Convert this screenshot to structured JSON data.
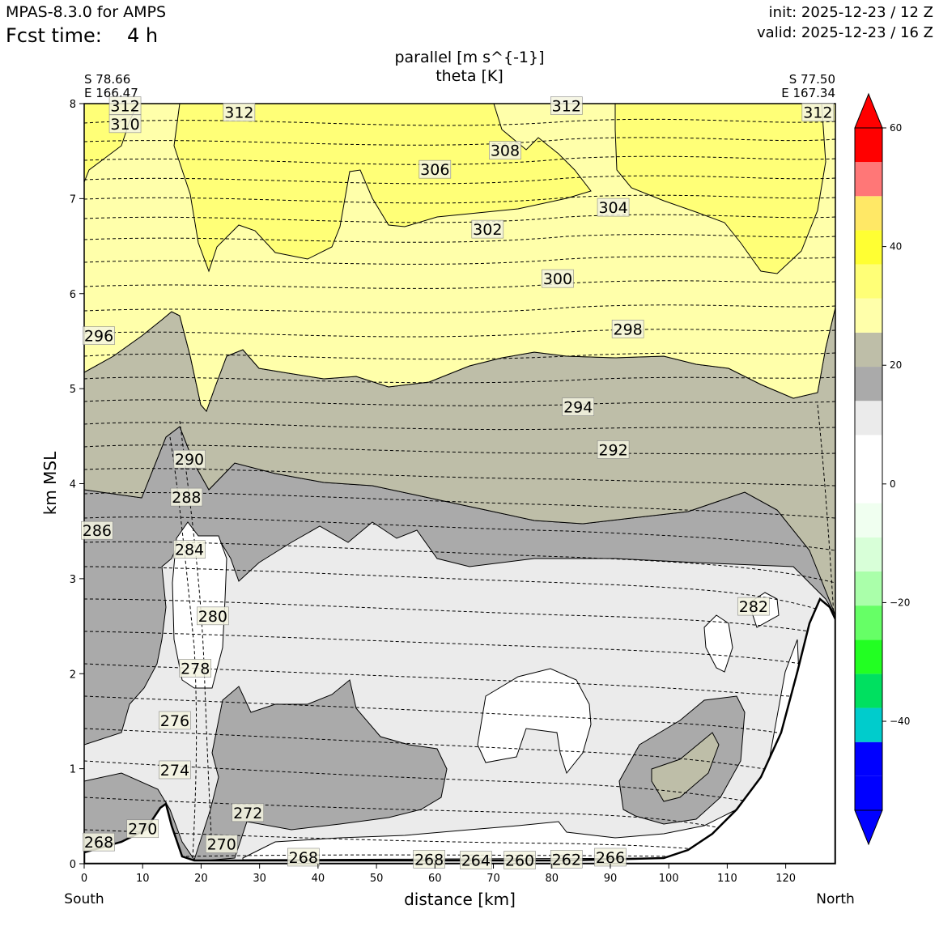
{
  "header": {
    "model": "MPAS-8.3.0 for AMPS",
    "fcst_label": "Fcst time:",
    "fcst_value": "4 h",
    "init": "init: 2025-12-23 / 12 Z",
    "valid": "valid: 2025-12-23 / 16 Z"
  },
  "chart_data": {
    "type": "cross-section",
    "title": "parallel [m s^{-1}]",
    "subtitle": "theta [K]",
    "start_point": [
      "S 78.66",
      "E 166.47"
    ],
    "end_point": [
      "S 77.50",
      "E 167.34"
    ],
    "xlabel": "distance [km]",
    "ylabel": "km MSL",
    "x_end_labels": [
      "South",
      "North"
    ],
    "xlim": [
      0,
      128.5
    ],
    "ylim": [
      0,
      8
    ],
    "x_ticks": [
      0,
      10,
      20,
      30,
      40,
      50,
      60,
      70,
      80,
      90,
      100,
      110,
      120
    ],
    "y_ticks": [
      0,
      1,
      2,
      3,
      4,
      5,
      6,
      7,
      8
    ],
    "colorbar": {
      "ticks": [
        -40,
        -20,
        0,
        20,
        40,
        60
      ],
      "tick_labels": [
        "−40",
        "−20",
        "0",
        "20",
        "40",
        "60"
      ],
      "levels": [
        -55,
        -50,
        -45,
        -40,
        -35,
        -30,
        -25,
        -20,
        -15,
        -10,
        -5,
        0,
        5,
        10,
        15,
        20,
        25,
        30,
        35,
        40,
        45,
        50,
        55,
        60
      ],
      "colors": [
        "#0000ff",
        "#0000ff",
        "#00cccc",
        "#00e060",
        "#22ff22",
        "#66ff66",
        "#aaffaa",
        "#d8ffd8",
        "#f0fff0",
        "#ffffff",
        "#ffffff",
        "#ebebeb",
        "#aaaaaa",
        "#bebea8",
        "#ffffaa",
        "#ffff77",
        "#ffff33",
        "#ffe866",
        "#ff7777",
        "#ff0000"
      ],
      "extend_colors": {
        "min": "#0000ff",
        "max": "#ff0000"
      }
    },
    "wind_fill_colors": {
      "light_grey": "#ebebeb",
      "grey": "#aaaaaa",
      "khaki": "#bebea8",
      "pale_yellow": "#ffffaa",
      "yellow": "#ffff77"
    },
    "theta_labels": [
      {
        "text": "312",
        "x": 7.0,
        "y": 7.97
      },
      {
        "text": "310",
        "x": 7.0,
        "y": 7.78
      },
      {
        "text": "312",
        "x": 26.5,
        "y": 7.9
      },
      {
        "text": "312",
        "x": 82.5,
        "y": 7.97
      },
      {
        "text": "312",
        "x": 125.5,
        "y": 7.9
      },
      {
        "text": "308",
        "x": 72.0,
        "y": 7.5
      },
      {
        "text": "306",
        "x": 60.0,
        "y": 7.3
      },
      {
        "text": "304",
        "x": 90.5,
        "y": 6.9
      },
      {
        "text": "302",
        "x": 69.0,
        "y": 6.67
      },
      {
        "text": "300",
        "x": 81.0,
        "y": 6.15
      },
      {
        "text": "298",
        "x": 93.0,
        "y": 5.62
      },
      {
        "text": "296",
        "x": 2.5,
        "y": 5.55
      },
      {
        "text": "294",
        "x": 84.5,
        "y": 4.8
      },
      {
        "text": "292",
        "x": 90.5,
        "y": 4.35
      },
      {
        "text": "290",
        "x": 18.0,
        "y": 4.25
      },
      {
        "text": "288",
        "x": 17.5,
        "y": 3.85
      },
      {
        "text": "286",
        "x": 2.2,
        "y": 3.5
      },
      {
        "text": "284",
        "x": 18.0,
        "y": 3.3
      },
      {
        "text": "282",
        "x": 114.5,
        "y": 2.7
      },
      {
        "text": "280",
        "x": 22.0,
        "y": 2.6
      },
      {
        "text": "278",
        "x": 19.0,
        "y": 2.05
      },
      {
        "text": "276",
        "x": 15.5,
        "y": 1.5
      },
      {
        "text": "274",
        "x": 15.5,
        "y": 0.98
      },
      {
        "text": "272",
        "x": 28.0,
        "y": 0.53
      },
      {
        "text": "270",
        "x": 10.0,
        "y": 0.36
      },
      {
        "text": "270",
        "x": 23.5,
        "y": 0.2
      },
      {
        "text": "268",
        "x": 2.5,
        "y": 0.22
      },
      {
        "text": "268",
        "x": 37.5,
        "y": 0.06
      },
      {
        "text": "268",
        "x": 59.0,
        "y": 0.04
      },
      {
        "text": "264",
        "x": 67.0,
        "y": 0.03
      },
      {
        "text": "260",
        "x": 74.5,
        "y": 0.03
      },
      {
        "text": "262",
        "x": 82.5,
        "y": 0.04
      },
      {
        "text": "266",
        "x": 90.0,
        "y": 0.06
      }
    ]
  }
}
